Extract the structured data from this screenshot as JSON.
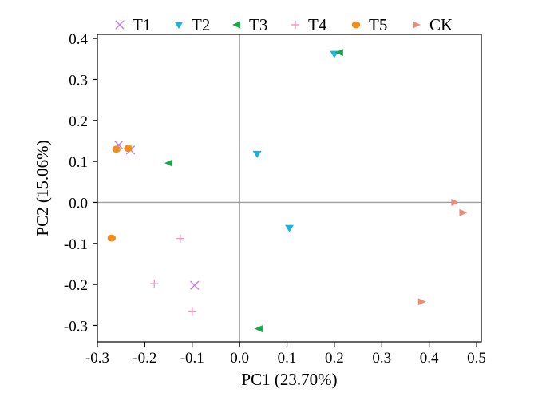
{
  "chart_data": {
    "type": "scatter",
    "title": "",
    "xlabel": "PC1 (23.70%)",
    "ylabel": "PC2 (15.06%)",
    "xlim": [
      -0.3,
      0.51
    ],
    "ylim": [
      -0.34,
      0.41
    ],
    "xticks": [
      -0.3,
      -0.2,
      -0.1,
      0.0,
      0.1,
      0.2,
      0.3,
      0.4,
      0.5
    ],
    "yticks": [
      -0.3,
      -0.2,
      -0.1,
      0.0,
      0.1,
      0.2,
      0.3,
      0.4
    ],
    "xtick_labels": [
      "-0.3",
      "-0.2",
      "-0.1",
      "0.0",
      "0.1",
      "0.2",
      "0.3",
      "0.4",
      "0.5"
    ],
    "ytick_labels": [
      "-0.3",
      "-0.2",
      "-0.1",
      "0.0",
      "0.1",
      "0.2",
      "0.3",
      "0.4"
    ],
    "grid": false,
    "zero_lines": true,
    "legend_position": "top",
    "series": [
      {
        "name": "T1",
        "marker": "x",
        "color": "#c77ee0",
        "points": [
          [
            -0.255,
            0.14
          ],
          [
            -0.23,
            0.128
          ],
          [
            -0.095,
            -0.202
          ]
        ]
      },
      {
        "name": "T2",
        "marker": "triangle-down",
        "color": "#1cb3d8",
        "points": [
          [
            0.2,
            0.362
          ],
          [
            0.037,
            0.118
          ],
          [
            0.105,
            -0.063
          ]
        ]
      },
      {
        "name": "T3",
        "marker": "triangle-left",
        "color": "#1aa64a",
        "points": [
          [
            0.21,
            0.366
          ],
          [
            -0.15,
            0.096
          ],
          [
            0.04,
            -0.308
          ]
        ]
      },
      {
        "name": "T4",
        "marker": "plus",
        "color": "#f29ac6",
        "points": [
          [
            -0.125,
            -0.088
          ],
          [
            -0.18,
            -0.198
          ],
          [
            -0.1,
            -0.265
          ]
        ]
      },
      {
        "name": "T5",
        "marker": "circle",
        "color": "#f28c1b",
        "points": [
          [
            -0.26,
            0.13
          ],
          [
            -0.235,
            0.132
          ],
          [
            -0.27,
            -0.087
          ]
        ]
      },
      {
        "name": "CK",
        "marker": "triangle-right",
        "color": "#ee8a7c",
        "points": [
          [
            0.455,
            0.0
          ],
          [
            0.472,
            -0.025
          ],
          [
            0.385,
            -0.242
          ]
        ]
      }
    ]
  }
}
